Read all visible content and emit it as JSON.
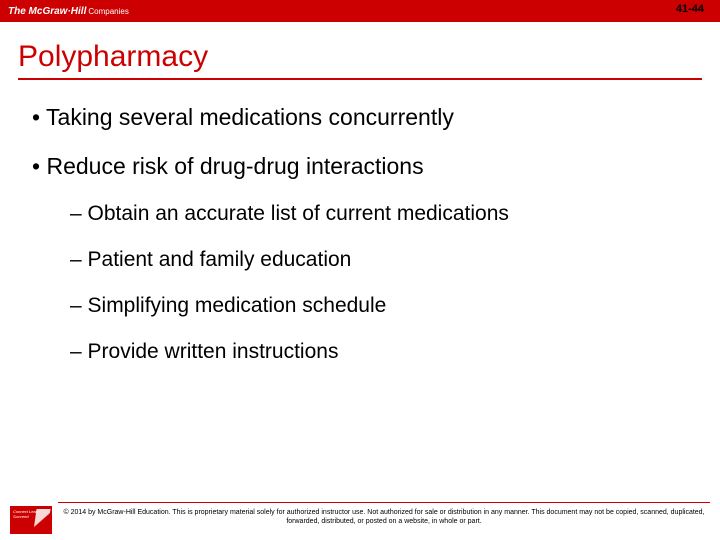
{
  "header": {
    "logo_main": "The McGraw·Hill",
    "logo_sub": "Companies",
    "page_number": "41-44"
  },
  "title": "Polypharmacy",
  "bullets": [
    {
      "level": 1,
      "text": "Taking several medications concurrently"
    },
    {
      "level": 1,
      "text": "Reduce risk of drug-drug interactions"
    },
    {
      "level": 2,
      "text": "Obtain an accurate list of current medications"
    },
    {
      "level": 2,
      "text": "Patient and family education"
    },
    {
      "level": 2,
      "text": "Simplifying medication schedule"
    },
    {
      "level": 2,
      "text": "Provide written instructions"
    }
  ],
  "footer": {
    "badge_lines": "Connect\nLearn\nSucceed",
    "copyright": "© 2014 by McGraw-Hill Education. This is proprietary material solely for authorized instructor use. Not authorized for sale or distribution in any manner. This document may not be copied, scanned, duplicated, forwarded, distributed, or posted on a website, in whole or part."
  },
  "colors": {
    "brand_red": "#cc0000",
    "text": "#000000",
    "background": "#ffffff"
  }
}
